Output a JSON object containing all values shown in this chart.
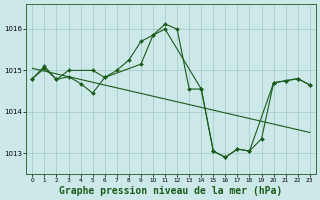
{
  "background_color": "#cce8e8",
  "grid_color": "#aacccc",
  "line_color": "#1a5c1a",
  "marker_color": "#1a5c1a",
  "title": "Graphe pression niveau de la mer (hPa)",
  "title_fontsize": 7.0,
  "xlim": [
    -0.5,
    23.5
  ],
  "ylim": [
    1012.5,
    1016.6
  ],
  "yticks": [
    1013,
    1014,
    1015,
    1016
  ],
  "xticks": [
    0,
    1,
    2,
    3,
    4,
    5,
    6,
    7,
    8,
    9,
    10,
    11,
    12,
    13,
    14,
    15,
    16,
    17,
    18,
    19,
    20,
    21,
    22,
    23
  ],
  "series1_x": [
    0,
    1,
    2,
    3,
    4,
    5,
    6,
    7,
    8,
    9,
    10,
    11,
    12,
    13,
    14,
    15,
    16,
    17,
    18,
    19,
    20,
    21,
    22,
    23
  ],
  "series1_y": [
    1014.8,
    1015.1,
    1014.78,
    1014.85,
    1014.68,
    1014.45,
    1014.83,
    1015.0,
    1015.25,
    1015.7,
    1015.85,
    1016.12,
    1016.0,
    1014.55,
    1014.55,
    1013.05,
    1012.9,
    1013.1,
    1013.05,
    1013.35,
    1014.7,
    1014.75,
    1014.8,
    1014.65
  ],
  "series2_x": [
    0,
    1,
    2,
    3,
    5,
    6,
    9,
    10,
    11,
    14,
    15,
    16,
    17,
    18,
    20,
    21,
    22,
    23
  ],
  "series2_y": [
    1014.8,
    1015.05,
    1014.78,
    1015.0,
    1015.0,
    1014.83,
    1015.15,
    1015.85,
    1016.0,
    1014.55,
    1013.05,
    1012.9,
    1013.1,
    1013.05,
    1014.7,
    1014.75,
    1014.8,
    1014.65
  ],
  "series3_x": [
    0,
    23
  ],
  "series3_y": [
    1015.05,
    1013.5
  ]
}
